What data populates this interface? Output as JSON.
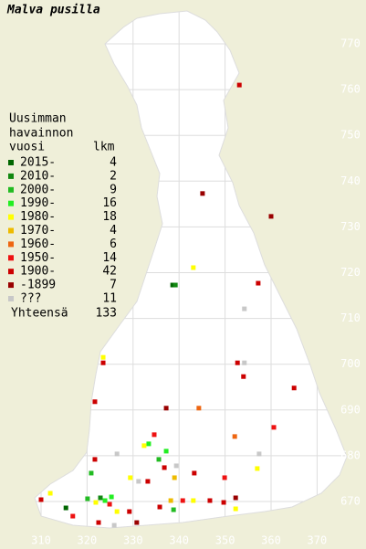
{
  "map": {
    "title": "Malva pusilla",
    "legend_header": [
      "Uusimman",
      "havainnon",
      "vuosi"
    ],
    "count_header": "lkm",
    "entries": [
      {
        "label": "2015-",
        "count": "4",
        "color": "#006600",
        "points": [
          [
            315.4,
            668.6
          ],
          [
            338.6,
            717.3
          ]
        ]
      },
      {
        "label": "2010-",
        "count": "2",
        "color": "#118811",
        "points": [
          [
            339.2,
            717.3
          ],
          [
            322.9,
            670.8
          ]
        ]
      },
      {
        "label": "2000-",
        "count": "9",
        "color": "#22bb22",
        "points": [
          [
            335.6,
            679.2
          ],
          [
            320.9,
            676.2
          ],
          [
            320.1,
            670.6
          ],
          [
            338.8,
            668.2
          ]
        ]
      },
      {
        "label": "1990-",
        "count": "16",
        "color": "#22ee22",
        "points": [
          [
            333.4,
            682.6
          ],
          [
            323.9,
            670.2
          ],
          [
            325.3,
            671.0
          ],
          [
            337.2,
            681.0
          ]
        ]
      },
      {
        "label": "1980-",
        "count": "18",
        "color": "#ffff00",
        "points": [
          [
            323.5,
            701.5
          ],
          [
            343.1,
            721.1
          ],
          [
            332.4,
            682.2
          ],
          [
            312.0,
            671.8
          ],
          [
            321.9,
            669.8
          ],
          [
            326.5,
            667.8
          ],
          [
            357.0,
            677.2
          ],
          [
            329.4,
            675.2
          ],
          [
            352.3,
            668.4
          ],
          [
            343.1,
            670.2
          ]
        ]
      },
      {
        "label": "1970-",
        "count": "4",
        "color": "#eebb00",
        "points": [
          [
            339.0,
            675.2
          ],
          [
            338.2,
            670.2
          ]
        ]
      },
      {
        "label": "1960-",
        "count": "6",
        "color": "#ee6611",
        "points": [
          [
            344.3,
            690.4
          ],
          [
            352.1,
            684.2
          ]
        ]
      },
      {
        "label": "1950-",
        "count": "14",
        "color": "#ee1111",
        "points": [
          [
            334.6,
            684.6
          ],
          [
            360.6,
            686.2
          ],
          [
            349.9,
            675.2
          ],
          [
            324.9,
            669.4
          ],
          [
            340.8,
            670.2
          ],
          [
            316.9,
            666.8
          ]
        ]
      },
      {
        "label": "1900-",
        "count": "42",
        "color": "#cc0000",
        "points": [
          [
            353.1,
            761.0
          ],
          [
            357.2,
            717.7
          ],
          [
            352.7,
            700.3
          ],
          [
            323.5,
            700.3
          ],
          [
            354.0,
            697.3
          ],
          [
            365.0,
            694.8
          ],
          [
            321.7,
            691.8
          ],
          [
            321.7,
            679.2
          ],
          [
            336.8,
            677.4
          ],
          [
            343.3,
            676.2
          ],
          [
            333.2,
            674.4
          ],
          [
            310.0,
            670.4
          ],
          [
            329.2,
            667.8
          ],
          [
            346.7,
            670.2
          ],
          [
            349.7,
            669.8
          ],
          [
            322.5,
            665.4
          ],
          [
            335.8,
            668.8
          ]
        ]
      },
      {
        "label": "-1899",
        "count": "7",
        "color": "#990000",
        "points": [
          [
            345.1,
            737.3
          ],
          [
            360.0,
            732.3
          ],
          [
            337.2,
            690.4
          ],
          [
            330.8,
            665.4
          ],
          [
            352.3,
            670.8
          ]
        ]
      },
      {
        "label": "???",
        "count": "11",
        "color": "#c8c8c8",
        "points": [
          [
            354.2,
            712.1
          ],
          [
            354.2,
            700.3
          ],
          [
            326.5,
            680.4
          ],
          [
            357.4,
            680.4
          ],
          [
            339.4,
            677.8
          ],
          [
            331.2,
            674.4
          ],
          [
            325.9,
            664.8
          ]
        ]
      }
    ],
    "total_label": "Yhteensä",
    "total": "133",
    "xticks": [
      310,
      320,
      330,
      340,
      350,
      360,
      370
    ],
    "yticks": [
      670,
      680,
      690,
      700,
      710,
      720,
      730,
      740,
      750,
      760,
      770
    ]
  }
}
